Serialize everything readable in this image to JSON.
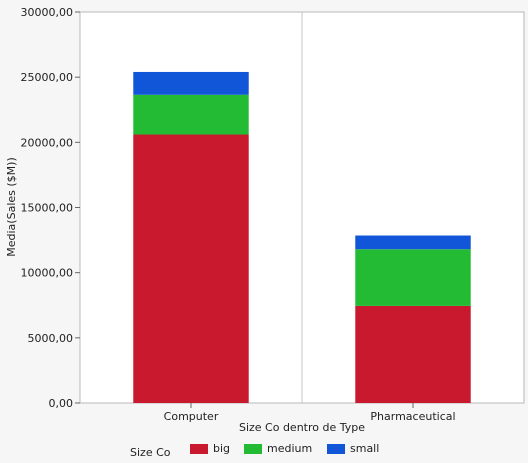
{
  "chart_data": {
    "type": "bar",
    "stacked": true,
    "categories": [
      "Computer",
      "Pharmaceutical"
    ],
    "series": [
      {
        "name": "big",
        "values": [
          20600,
          7450
        ],
        "color": "#c8192e"
      },
      {
        "name": "medium",
        "values": [
          3050,
          4350
        ],
        "color": "#22bb33"
      },
      {
        "name": "small",
        "values": [
          1750,
          1050
        ],
        "color": "#1155d8"
      }
    ],
    "xlabel": "Size Co dentro de Type",
    "ylabel": "Media(Sales ($M))",
    "ylim": [
      0,
      30000
    ],
    "yticks": [
      "0,00",
      "5000,00",
      "10000,00",
      "15000,00",
      "20000,00",
      "25000,00",
      "30000,00"
    ],
    "legend_title": "Size Co",
    "legend_position": "bottom"
  }
}
